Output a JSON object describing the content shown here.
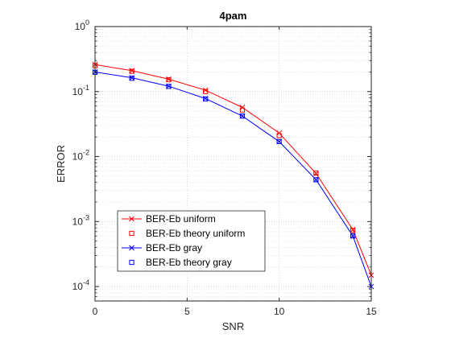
{
  "chart_data": {
    "type": "line",
    "title": "4pam",
    "xlabel": "SNR",
    "ylabel": "ERROR",
    "xlim": [
      0,
      15
    ],
    "ylim": [
      6e-05,
      1
    ],
    "yscale": "log",
    "grid": true,
    "legend_position": "bottom-left",
    "x": [
      0,
      2,
      4,
      6,
      8,
      10,
      12,
      14,
      15
    ],
    "x_ticks": [
      "0",
      "5",
      "10",
      "15"
    ],
    "y_ticks": [
      {
        "base": "10",
        "exp": "0"
      },
      {
        "base": "10",
        "exp": "-1"
      },
      {
        "base": "10",
        "exp": "-2"
      },
      {
        "base": "10",
        "exp": "-3"
      },
      {
        "base": "10",
        "exp": "-4"
      }
    ],
    "series": [
      {
        "name": "BER-Eb uniform",
        "color": "#ff0000",
        "marker": "x",
        "line": true,
        "x": [
          0,
          2,
          4,
          6,
          8,
          10,
          12,
          14,
          15
        ],
        "values": [
          0.26,
          0.21,
          0.155,
          0.105,
          0.057,
          0.023,
          0.0055,
          0.00075,
          0.00015
        ]
      },
      {
        "name": "BER-Eb theory uniform",
        "color": "#ff0000",
        "marker": "square",
        "line": false,
        "x": [
          0,
          2,
          4,
          6,
          8,
          10,
          12,
          14
        ],
        "values": [
          0.25,
          0.205,
          0.152,
          0.1,
          0.052,
          0.021,
          0.0056,
          0.00073
        ]
      },
      {
        "name": "BER-Eb gray",
        "color": "#0000ff",
        "marker": "x",
        "line": true,
        "x": [
          0,
          2,
          4,
          6,
          8,
          10,
          12,
          14,
          15
        ],
        "values": [
          0.2,
          0.163,
          0.121,
          0.078,
          0.042,
          0.017,
          0.0044,
          0.0006,
          0.0001
        ]
      },
      {
        "name": "BER-Eb theory gray",
        "color": "#0000ff",
        "marker": "square",
        "line": false,
        "x": [
          0,
          2,
          4,
          6,
          8,
          10,
          12,
          14
        ],
        "values": [
          0.198,
          0.16,
          0.12,
          0.077,
          0.042,
          0.017,
          0.0044,
          0.0006
        ]
      }
    ]
  }
}
